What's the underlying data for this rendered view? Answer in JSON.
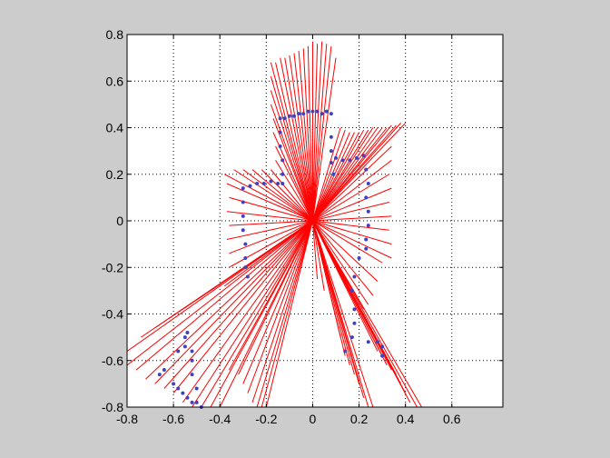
{
  "chart_data": {
    "type": "scatter",
    "title": "",
    "xlabel": "",
    "ylabel": "",
    "xlim": [
      -0.8,
      0.82
    ],
    "ylim": [
      -0.8,
      0.8
    ],
    "x_ticks": [
      -0.8,
      -0.6,
      -0.4,
      -0.2,
      0,
      0.2,
      0.4,
      0.6
    ],
    "y_ticks": [
      -0.8,
      -0.6,
      -0.4,
      -0.2,
      0,
      0.2,
      0.4,
      0.6,
      0.8
    ],
    "x_tick_labels": [
      "-0.8",
      "-0.6",
      "-0.4",
      "-0.2",
      "0",
      "0.2",
      "0.4",
      "0.6"
    ],
    "y_tick_labels": [
      "-0.8",
      "-0.6",
      "-0.4",
      "-0.2",
      "0",
      "0.2",
      "0.4",
      "0.6",
      "0.8"
    ],
    "grid": true,
    "grid_style": "dotted",
    "colors": {
      "background": "#cccccc",
      "axes_background": "#ffffff",
      "rays": "#ff0000",
      "points": "#4040c0",
      "origin": "#ff0000",
      "grid": "#000000"
    },
    "origin": [
      0,
      0
    ],
    "rays": {
      "description": "scan rays from origin to each range endpoint",
      "color": "#ff0000"
    },
    "ray_endpoints": [
      [
        -0.18,
        0.68
      ],
      [
        -0.16,
        0.68
      ],
      [
        -0.14,
        0.7
      ],
      [
        -0.12,
        0.7
      ],
      [
        -0.1,
        0.71
      ],
      [
        -0.08,
        0.72
      ],
      [
        -0.06,
        0.73
      ],
      [
        -0.04,
        0.74
      ],
      [
        -0.02,
        0.75
      ],
      [
        0.0,
        0.77
      ],
      [
        0.02,
        0.76
      ],
      [
        0.04,
        0.77
      ],
      [
        0.06,
        0.76
      ],
      [
        0.08,
        0.75
      ],
      [
        0.1,
        0.7
      ],
      [
        0.12,
        0.4
      ],
      [
        0.14,
        0.39
      ],
      [
        0.16,
        0.38
      ],
      [
        0.18,
        0.38
      ],
      [
        0.2,
        0.38
      ],
      [
        0.22,
        0.39
      ],
      [
        0.24,
        0.39
      ],
      [
        0.26,
        0.4
      ],
      [
        0.28,
        0.4
      ],
      [
        0.3,
        0.4
      ],
      [
        0.32,
        0.4
      ],
      [
        0.34,
        0.41
      ],
      [
        0.36,
        0.41
      ],
      [
        0.38,
        0.42
      ],
      [
        0.4,
        0.42
      ],
      [
        0.34,
        0.32
      ],
      [
        0.34,
        0.26
      ],
      [
        0.33,
        0.2
      ],
      [
        0.34,
        0.14
      ],
      [
        0.33,
        0.08
      ],
      [
        0.34,
        0.02
      ],
      [
        0.33,
        -0.04
      ],
      [
        0.34,
        -0.1
      ],
      [
        0.34,
        -0.16
      ],
      [
        0.3,
        -0.18
      ],
      [
        0.28,
        -0.26
      ],
      [
        0.26,
        -0.32
      ],
      [
        0.24,
        -0.36
      ],
      [
        0.22,
        -0.38
      ],
      [
        0.47,
        -0.8
      ],
      [
        0.45,
        -0.8
      ],
      [
        0.42,
        -0.78
      ],
      [
        0.4,
        -0.74
      ],
      [
        0.38,
        -0.7
      ],
      [
        0.36,
        -0.66
      ],
      [
        0.34,
        -0.64
      ],
      [
        0.32,
        -0.62
      ],
      [
        0.3,
        -0.58
      ],
      [
        0.28,
        -0.56
      ],
      [
        0.26,
        -0.8
      ],
      [
        0.24,
        -0.8
      ],
      [
        0.22,
        -0.76
      ],
      [
        0.2,
        -0.7
      ],
      [
        0.18,
        -0.66
      ],
      [
        0.16,
        -0.62
      ],
      [
        0.14,
        -0.58
      ],
      [
        0.12,
        -0.5
      ],
      [
        0.05,
        -0.3
      ],
      [
        0.02,
        -0.25
      ],
      [
        -0.2,
        -0.8
      ],
      [
        -0.22,
        -0.8
      ],
      [
        -0.24,
        -0.8
      ],
      [
        -0.26,
        -0.78
      ],
      [
        -0.28,
        -0.74
      ],
      [
        -0.3,
        -0.7
      ],
      [
        -0.32,
        -0.66
      ],
      [
        -0.36,
        -0.64
      ],
      [
        -0.4,
        -0.8
      ],
      [
        -0.44,
        -0.8
      ],
      [
        -0.48,
        -0.8
      ],
      [
        -0.52,
        -0.8
      ],
      [
        -0.56,
        -0.78
      ],
      [
        -0.6,
        -0.74
      ],
      [
        -0.64,
        -0.72
      ],
      [
        -0.68,
        -0.7
      ],
      [
        -0.72,
        -0.68
      ],
      [
        -0.76,
        -0.64
      ],
      [
        -0.8,
        -0.62
      ],
      [
        -0.8,
        -0.56
      ],
      [
        -0.74,
        -0.5
      ],
      [
        -0.68,
        -0.46
      ],
      [
        -0.62,
        -0.42
      ],
      [
        -0.56,
        -0.38
      ],
      [
        -0.5,
        -0.34
      ],
      [
        -0.44,
        -0.3
      ],
      [
        -0.38,
        -0.28
      ],
      [
        -0.36,
        -0.2
      ],
      [
        -0.36,
        -0.14
      ],
      [
        -0.37,
        -0.08
      ],
      [
        -0.36,
        -0.02
      ],
      [
        -0.37,
        0.04
      ],
      [
        -0.36,
        0.1
      ],
      [
        -0.37,
        0.16
      ],
      [
        -0.38,
        0.2
      ],
      [
        -0.34,
        0.22
      ],
      [
        -0.3,
        0.22
      ],
      [
        -0.26,
        0.22
      ],
      [
        -0.22,
        0.22
      ],
      [
        -0.18,
        0.22
      ],
      [
        -0.16,
        0.26
      ],
      [
        -0.16,
        0.32
      ],
      [
        -0.17,
        0.38
      ],
      [
        -0.17,
        0.44
      ],
      [
        -0.18,
        0.5
      ],
      [
        -0.18,
        0.56
      ],
      [
        -0.18,
        0.62
      ]
    ],
    "points": [
      [
        -0.14,
        0.44
      ],
      [
        -0.12,
        0.44
      ],
      [
        -0.1,
        0.45
      ],
      [
        -0.08,
        0.45
      ],
      [
        -0.06,
        0.46
      ],
      [
        -0.04,
        0.46
      ],
      [
        -0.02,
        0.47
      ],
      [
        0.0,
        0.47
      ],
      [
        0.02,
        0.47
      ],
      [
        0.04,
        0.46
      ],
      [
        0.06,
        0.47
      ],
      [
        0.08,
        0.46
      ],
      [
        -0.14,
        0.38
      ],
      [
        -0.14,
        0.32
      ],
      [
        -0.13,
        0.26
      ],
      [
        -0.13,
        0.2
      ],
      [
        -0.13,
        0.16
      ],
      [
        0.08,
        0.36
      ],
      [
        0.08,
        0.3
      ],
      [
        0.08,
        0.25
      ],
      [
        0.09,
        0.2
      ],
      [
        0.1,
        0.27
      ],
      [
        0.13,
        0.26
      ],
      [
        0.16,
        0.26
      ],
      [
        0.19,
        0.27
      ],
      [
        0.22,
        0.28
      ],
      [
        0.23,
        0.22
      ],
      [
        0.24,
        0.16
      ],
      [
        0.23,
        0.1
      ],
      [
        0.24,
        0.04
      ],
      [
        0.24,
        -0.02
      ],
      [
        0.23,
        -0.08
      ],
      [
        0.23,
        -0.12
      ],
      [
        -0.3,
        0.14
      ],
      [
        -0.27,
        0.15
      ],
      [
        -0.24,
        0.16
      ],
      [
        -0.21,
        0.16
      ],
      [
        -0.18,
        0.17
      ],
      [
        -0.15,
        0.16
      ],
      [
        -0.3,
        0.08
      ],
      [
        -0.3,
        0.02
      ],
      [
        -0.3,
        -0.04
      ],
      [
        -0.29,
        -0.1
      ],
      [
        -0.29,
        -0.16
      ],
      [
        -0.29,
        -0.2
      ],
      [
        -0.28,
        -0.24
      ],
      [
        0.2,
        -0.16
      ],
      [
        0.18,
        -0.24
      ],
      [
        0.17,
        -0.3
      ],
      [
        0.18,
        -0.38
      ],
      [
        0.18,
        -0.44
      ],
      [
        0.17,
        -0.5
      ],
      [
        0.14,
        -0.56
      ],
      [
        0.24,
        -0.52
      ],
      [
        0.28,
        -0.52
      ],
      [
        0.3,
        -0.54
      ],
      [
        0.3,
        -0.58
      ],
      [
        -0.54,
        -0.48
      ],
      [
        -0.55,
        -0.5
      ],
      [
        -0.55,
        -0.54
      ],
      [
        -0.58,
        -0.56
      ],
      [
        -0.52,
        -0.56
      ],
      [
        -0.52,
        -0.6
      ],
      [
        -0.52,
        -0.66
      ],
      [
        -0.5,
        -0.72
      ],
      [
        -0.5,
        -0.78
      ],
      [
        -0.48,
        -0.8
      ],
      [
        -0.64,
        -0.64
      ],
      [
        -0.66,
        -0.66
      ],
      [
        -0.6,
        -0.7
      ],
      [
        -0.58,
        -0.72
      ],
      [
        -0.56,
        -0.74
      ],
      [
        -0.54,
        -0.76
      ],
      [
        -0.52,
        -0.78
      ]
    ]
  }
}
